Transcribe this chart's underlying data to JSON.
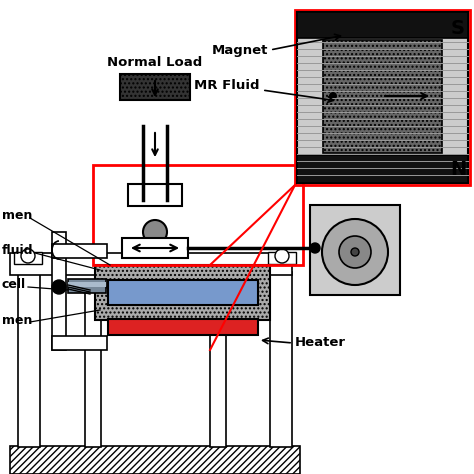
{
  "bg_color": "#ffffff",
  "labels": {
    "normal_load": "Normal Load",
    "magnet": "Magnet",
    "mr_fluid": "MR Fluid",
    "heater": "Heater",
    "men1": "men",
    "fluid": "fluid",
    "cell": "cell",
    "men2": "men"
  },
  "colors": {
    "black": "#000000",
    "white": "#ffffff",
    "gray_light": "#cccccc",
    "gray_medium": "#999999",
    "gray_dark": "#555555",
    "red_line": "#cc0000",
    "blue_specimen": "#7799cc",
    "heater_red": "#dd2222",
    "dark_hatch": "#333333"
  }
}
